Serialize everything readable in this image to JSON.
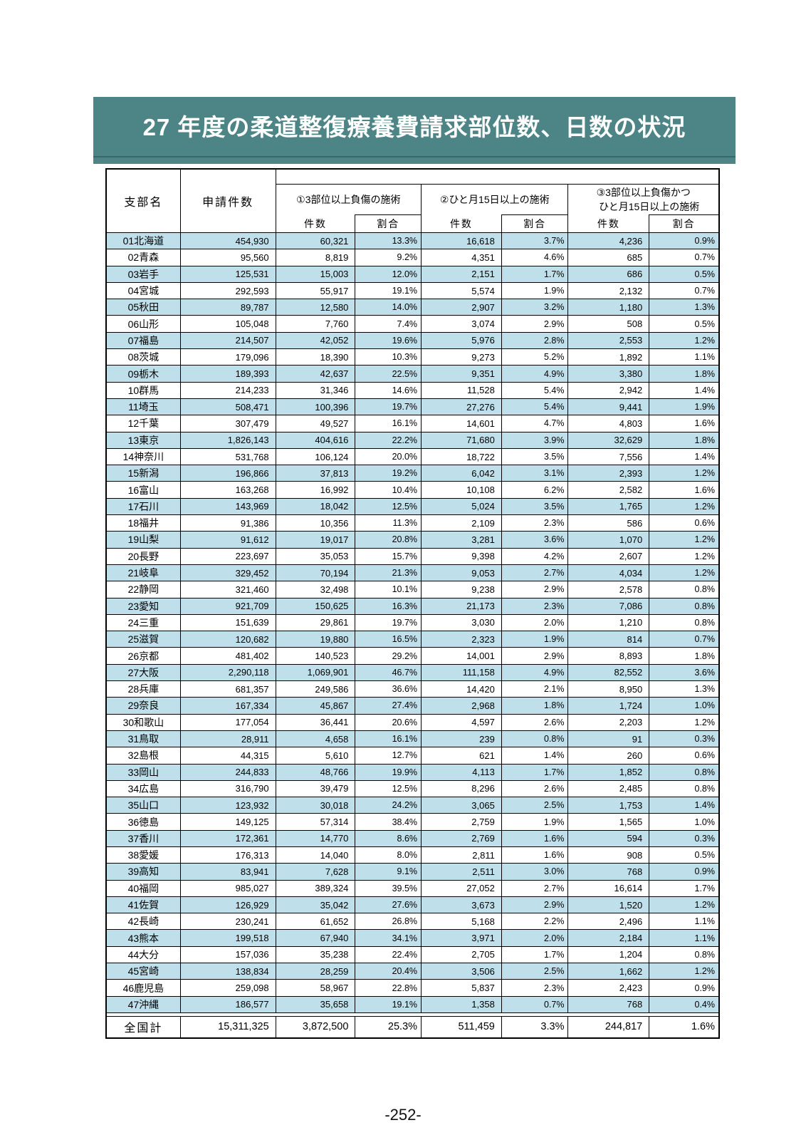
{
  "title": "27 年度の柔道整復療養費請求部位数、日数の状況",
  "page_number": "-252-",
  "colors": {
    "banner_teal": "#4d8486",
    "row_highlight": "#bfdfea",
    "grid_border": "#000000"
  },
  "table": {
    "headers": {
      "branch": "支部名",
      "applications": "申請件数",
      "group1": "①3部位以上負傷の施術",
      "group2": "②ひと月15日以上の施術",
      "group3_line1": "③3部位以上負傷かつ",
      "group3_line2": "ひと月15日以上の施術",
      "count": "件数",
      "ratio": "割合"
    },
    "rows": [
      [
        "01北海道",
        "454,930",
        "60,321",
        "13.3%",
        "16,618",
        "3.7%",
        "4,236",
        "0.9%"
      ],
      [
        "02青森",
        "95,560",
        "8,819",
        "9.2%",
        "4,351",
        "4.6%",
        "685",
        "0.7%"
      ],
      [
        "03岩手",
        "125,531",
        "15,003",
        "12.0%",
        "2,151",
        "1.7%",
        "686",
        "0.5%"
      ],
      [
        "04宮城",
        "292,593",
        "55,917",
        "19.1%",
        "5,574",
        "1.9%",
        "2,132",
        "0.7%"
      ],
      [
        "05秋田",
        "89,787",
        "12,580",
        "14.0%",
        "2,907",
        "3.2%",
        "1,180",
        "1.3%"
      ],
      [
        "06山形",
        "105,048",
        "7,760",
        "7.4%",
        "3,074",
        "2.9%",
        "508",
        "0.5%"
      ],
      [
        "07福島",
        "214,507",
        "42,052",
        "19.6%",
        "5,976",
        "2.8%",
        "2,553",
        "1.2%"
      ],
      [
        "08茨城",
        "179,096",
        "18,390",
        "10.3%",
        "9,273",
        "5.2%",
        "1,892",
        "1.1%"
      ],
      [
        "09栃木",
        "189,393",
        "42,637",
        "22.5%",
        "9,351",
        "4.9%",
        "3,380",
        "1.8%"
      ],
      [
        "10群馬",
        "214,233",
        "31,346",
        "14.6%",
        "11,528",
        "5.4%",
        "2,942",
        "1.4%"
      ],
      [
        "11埼玉",
        "508,471",
        "100,396",
        "19.7%",
        "27,276",
        "5.4%",
        "9,441",
        "1.9%"
      ],
      [
        "12千葉",
        "307,479",
        "49,527",
        "16.1%",
        "14,601",
        "4.7%",
        "4,803",
        "1.6%"
      ],
      [
        "13東京",
        "1,826,143",
        "404,616",
        "22.2%",
        "71,680",
        "3.9%",
        "32,629",
        "1.8%"
      ],
      [
        "14神奈川",
        "531,768",
        "106,124",
        "20.0%",
        "18,722",
        "3.5%",
        "7,556",
        "1.4%"
      ],
      [
        "15新潟",
        "196,866",
        "37,813",
        "19.2%",
        "6,042",
        "3.1%",
        "2,393",
        "1.2%"
      ],
      [
        "16富山",
        "163,268",
        "16,992",
        "10.4%",
        "10,108",
        "6.2%",
        "2,582",
        "1.6%"
      ],
      [
        "17石川",
        "143,969",
        "18,042",
        "12.5%",
        "5,024",
        "3.5%",
        "1,765",
        "1.2%"
      ],
      [
        "18福井",
        "91,386",
        "10,356",
        "11.3%",
        "2,109",
        "2.3%",
        "586",
        "0.6%"
      ],
      [
        "19山梨",
        "91,612",
        "19,017",
        "20.8%",
        "3,281",
        "3.6%",
        "1,070",
        "1.2%"
      ],
      [
        "20長野",
        "223,697",
        "35,053",
        "15.7%",
        "9,398",
        "4.2%",
        "2,607",
        "1.2%"
      ],
      [
        "21岐阜",
        "329,452",
        "70,194",
        "21.3%",
        "9,053",
        "2.7%",
        "4,034",
        "1.2%"
      ],
      [
        "22静岡",
        "321,460",
        "32,498",
        "10.1%",
        "9,238",
        "2.9%",
        "2,578",
        "0.8%"
      ],
      [
        "23愛知",
        "921,709",
        "150,625",
        "16.3%",
        "21,173",
        "2.3%",
        "7,086",
        "0.8%"
      ],
      [
        "24三重",
        "151,639",
        "29,861",
        "19.7%",
        "3,030",
        "2.0%",
        "1,210",
        "0.8%"
      ],
      [
        "25滋賀",
        "120,682",
        "19,880",
        "16.5%",
        "2,323",
        "1.9%",
        "814",
        "0.7%"
      ],
      [
        "26京都",
        "481,402",
        "140,523",
        "29.2%",
        "14,001",
        "2.9%",
        "8,893",
        "1.8%"
      ],
      [
        "27大阪",
        "2,290,118",
        "1,069,901",
        "46.7%",
        "111,158",
        "4.9%",
        "82,552",
        "3.6%"
      ],
      [
        "28兵庫",
        "681,357",
        "249,586",
        "36.6%",
        "14,420",
        "2.1%",
        "8,950",
        "1.3%"
      ],
      [
        "29奈良",
        "167,334",
        "45,867",
        "27.4%",
        "2,968",
        "1.8%",
        "1,724",
        "1.0%"
      ],
      [
        "30和歌山",
        "177,054",
        "36,441",
        "20.6%",
        "4,597",
        "2.6%",
        "2,203",
        "1.2%"
      ],
      [
        "31鳥取",
        "28,911",
        "4,658",
        "16.1%",
        "239",
        "0.8%",
        "91",
        "0.3%"
      ],
      [
        "32島根",
        "44,315",
        "5,610",
        "12.7%",
        "621",
        "1.4%",
        "260",
        "0.6%"
      ],
      [
        "33岡山",
        "244,833",
        "48,766",
        "19.9%",
        "4,113",
        "1.7%",
        "1,852",
        "0.8%"
      ],
      [
        "34広島",
        "316,790",
        "39,479",
        "12.5%",
        "8,296",
        "2.6%",
        "2,485",
        "0.8%"
      ],
      [
        "35山口",
        "123,932",
        "30,018",
        "24.2%",
        "3,065",
        "2.5%",
        "1,753",
        "1.4%"
      ],
      [
        "36徳島",
        "149,125",
        "57,314",
        "38.4%",
        "2,759",
        "1.9%",
        "1,565",
        "1.0%"
      ],
      [
        "37香川",
        "172,361",
        "14,770",
        "8.6%",
        "2,769",
        "1.6%",
        "594",
        "0.3%"
      ],
      [
        "38愛媛",
        "176,313",
        "14,040",
        "8.0%",
        "2,811",
        "1.6%",
        "908",
        "0.5%"
      ],
      [
        "39高知",
        "83,941",
        "7,628",
        "9.1%",
        "2,511",
        "3.0%",
        "768",
        "0.9%"
      ],
      [
        "40福岡",
        "985,027",
        "389,324",
        "39.5%",
        "27,052",
        "2.7%",
        "16,614",
        "1.7%"
      ],
      [
        "41佐賀",
        "126,929",
        "35,042",
        "27.6%",
        "3,673",
        "2.9%",
        "1,520",
        "1.2%"
      ],
      [
        "42長崎",
        "230,241",
        "61,652",
        "26.8%",
        "5,168",
        "2.2%",
        "2,496",
        "1.1%"
      ],
      [
        "43熊本",
        "199,518",
        "67,940",
        "34.1%",
        "3,971",
        "2.0%",
        "2,184",
        "1.1%"
      ],
      [
        "44大分",
        "157,036",
        "35,238",
        "22.4%",
        "2,705",
        "1.7%",
        "1,204",
        "0.8%"
      ],
      [
        "45宮崎",
        "138,834",
        "28,259",
        "20.4%",
        "3,506",
        "2.5%",
        "1,662",
        "1.2%"
      ],
      [
        "46鹿児島",
        "259,098",
        "58,967",
        "22.8%",
        "5,837",
        "2.3%",
        "2,423",
        "0.9%"
      ],
      [
        "47沖縄",
        "186,577",
        "35,658",
        "19.1%",
        "1,358",
        "0.7%",
        "768",
        "0.4%"
      ]
    ],
    "total": [
      "全国計",
      "15,311,325",
      "3,872,500",
      "25.3%",
      "511,459",
      "3.3%",
      "244,817",
      "1.6%"
    ]
  }
}
